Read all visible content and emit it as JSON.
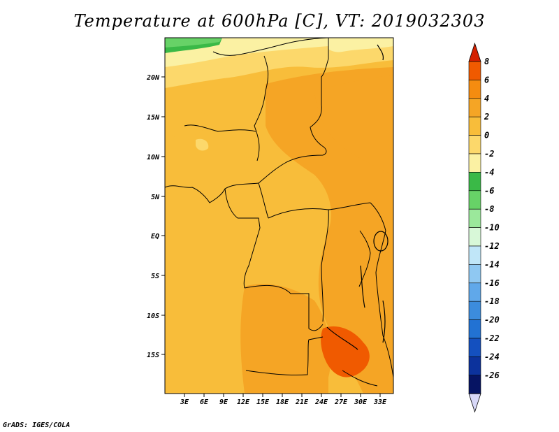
{
  "title": "Temperature at 600hPa [C], VT: 2019032303",
  "credit": "GrADS: IGES/COLA",
  "map": {
    "lat_labels": [
      "20N",
      "15N",
      "10N",
      "5N",
      "EQ",
      "5S",
      "10S",
      "15S"
    ],
    "lon_labels": [
      "3E",
      "6E",
      "9E",
      "12E",
      "15E",
      "18E",
      "21E",
      "24E",
      "27E",
      "30E",
      "33E"
    ]
  },
  "colorbar": {
    "labels": [
      "8",
      "6",
      "4",
      "2",
      "0",
      "-2",
      "-4",
      "-6",
      "-8",
      "-10",
      "-12",
      "-14",
      "-16",
      "-18",
      "-20",
      "-22",
      "-24",
      "-26"
    ],
    "colors": [
      "#d42000",
      "#f05a00",
      "#f58c10",
      "#f5a525",
      "#f8bd3a",
      "#fcd86b",
      "#fbf1a3",
      "#3ab947",
      "#67d267",
      "#9be89b",
      "#d8f8d8",
      "#c0e6f8",
      "#8fc8f2",
      "#60a8ea",
      "#3c8cdd",
      "#2272d3",
      "#1450bf",
      "#0c329c",
      "#061463"
    ],
    "bottom_color": "#d8d8f8"
  }
}
